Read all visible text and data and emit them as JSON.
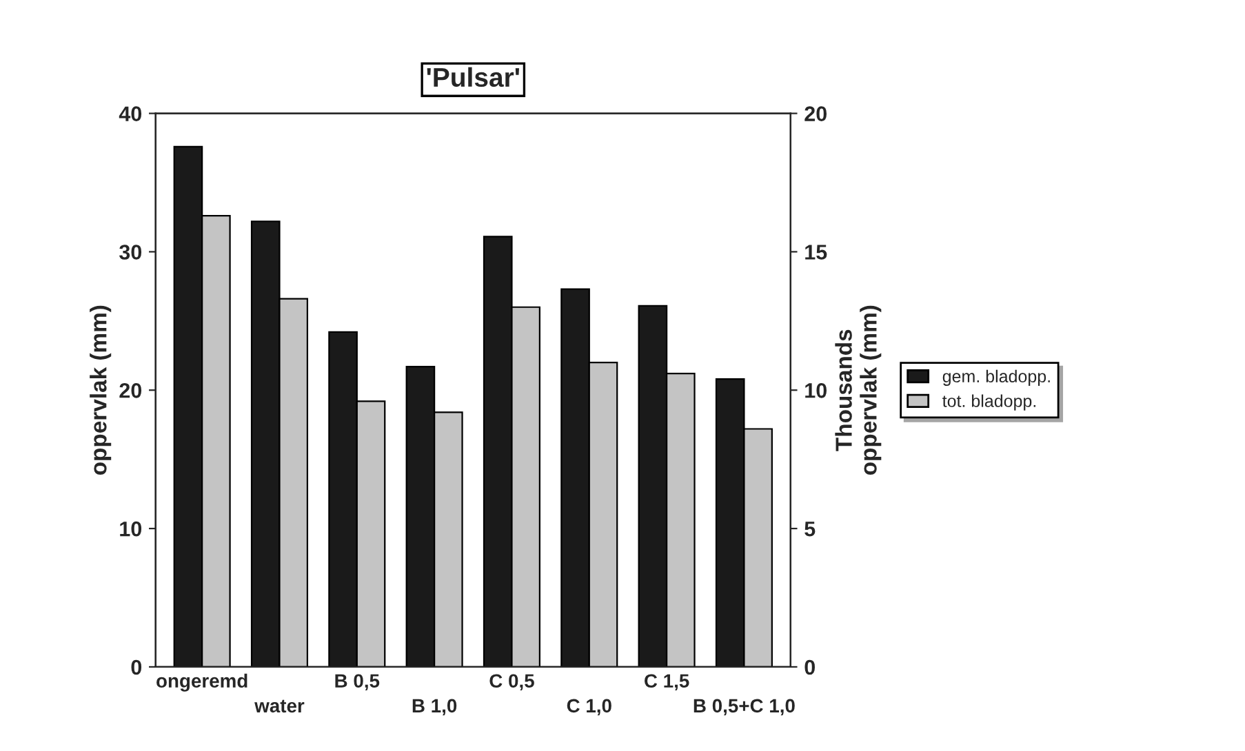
{
  "chart_data": {
    "type": "bar",
    "title": "'Pulsar'",
    "ylabel": "oppervlak (mm)",
    "y2label": "Thousands\noppervlak (mm)",
    "categories": [
      "ongeremd",
      "water",
      "B 0,5",
      "B 1,0",
      "C 0,5",
      "C 1,0",
      "C 1,5",
      "B 0,5+C 1,0"
    ],
    "series": [
      {
        "name": "gem. bladopp.",
        "color": "#1a1a1a",
        "values": [
          37.6,
          32.2,
          24.2,
          21.7,
          31.1,
          27.3,
          26.1,
          20.8
        ]
      },
      {
        "name": "tot. bladopp.",
        "color": "#c4c4c4",
        "axis": "y2",
        "values": [
          16.3,
          13.3,
          9.6,
          9.2,
          13.0,
          11.0,
          10.6,
          8.6
        ]
      }
    ],
    "ylim": [
      0,
      40
    ],
    "yticks": [
      0,
      10,
      20,
      30,
      40
    ],
    "y2lim": [
      0,
      20
    ],
    "y2ticks": [
      0,
      5,
      10,
      15,
      20
    ],
    "grid": false,
    "legend": "right"
  }
}
